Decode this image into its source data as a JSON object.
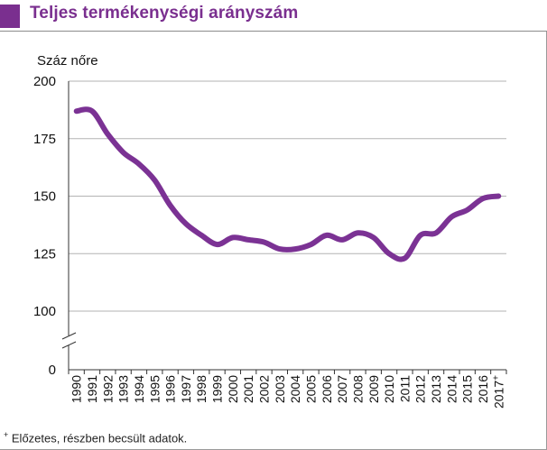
{
  "chart_data": {
    "type": "line",
    "title": "Teljes termékenységi arányszám",
    "ylabel": "Száz nőre",
    "xlabel": "",
    "ylim": [
      0,
      200
    ],
    "y_ticks": [
      0,
      100,
      125,
      150,
      175,
      200
    ],
    "axis_break": true,
    "grid": true,
    "legend": "none",
    "line_color": "#7b3294",
    "categories": [
      "1990",
      "1991",
      "1992",
      "1993",
      "1994",
      "1995",
      "1996",
      "1997",
      "1998",
      "1999",
      "2000",
      "2001",
      "2002",
      "2003",
      "2004",
      "2005",
      "2006",
      "2007",
      "2008",
      "2009",
      "2010",
      "2011",
      "2012",
      "2013",
      "2014",
      "2015",
      "2016",
      "2017+"
    ],
    "series": [
      {
        "name": "",
        "values": [
          187,
          187,
          177,
          169,
          164,
          157,
          146,
          138,
          133,
          129,
          132,
          131,
          130,
          127,
          127,
          129,
          133,
          131,
          134,
          132,
          125,
          123,
          133,
          134,
          141,
          144,
          149,
          150
        ]
      }
    ]
  },
  "footnote": {
    "mark": "+",
    "text": "Előzetes, részben becsült adatok."
  }
}
